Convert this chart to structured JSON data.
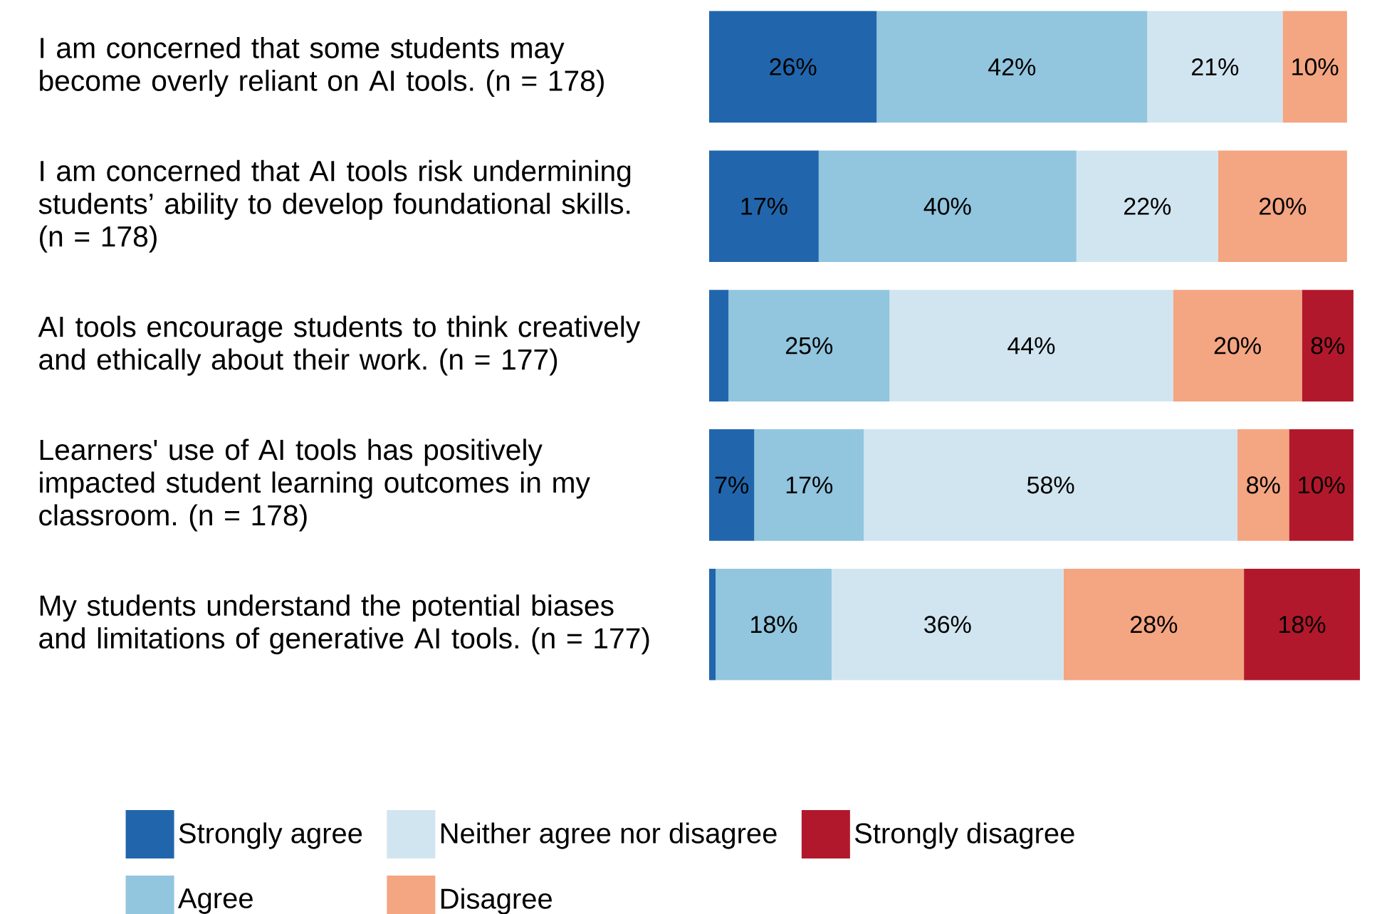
{
  "chart_data": {
    "type": "bar",
    "orientation": "horizontal",
    "stacked": true,
    "categories": [
      "I am concerned that some students may become overly reliant on AI tools. (n = 178)",
      "I am concerned that AI tools risk undermining students’ ability to develop foundational skills. (n = 178)",
      "AI tools encourage students to think creatively and ethically about their work. (n = 177)",
      "Learners' use of AI tools has positively impacted student learning outcomes in my classroom. (n = 178)",
      "My students understand the potential biases and limitations of generative AI tools. (n = 177)"
    ],
    "series": [
      {
        "name": "Strongly agree",
        "color": "#2166ac",
        "values": [
          26,
          17,
          3,
          7,
          1
        ],
        "value_labels": [
          "26%",
          "17%",
          null,
          "7%",
          null
        ]
      },
      {
        "name": "Agree",
        "color": "#92c5de",
        "values": [
          42,
          40,
          25,
          17,
          18
        ],
        "value_labels": [
          "42%",
          "40%",
          "25%",
          "17%",
          "18%"
        ]
      },
      {
        "name": "Neither agree nor disagree",
        "color": "#d1e5f0",
        "values": [
          21,
          22,
          44,
          58,
          36
        ],
        "value_labels": [
          "21%",
          "22%",
          "44%",
          "58%",
          "36%"
        ]
      },
      {
        "name": "Disagree",
        "color": "#f4a582",
        "values": [
          10,
          20,
          20,
          8,
          28
        ],
        "value_labels": [
          "10%",
          "20%",
          "20%",
          "8%",
          "28%"
        ]
      },
      {
        "name": "Strongly disagree",
        "color": "#b2182b",
        "values": [
          null,
          null,
          8,
          10,
          18
        ],
        "value_labels": [
          null,
          null,
          "8%",
          "10%",
          "18%"
        ]
      }
    ],
    "tick_labels": "y",
    "legend": "bottom"
  }
}
